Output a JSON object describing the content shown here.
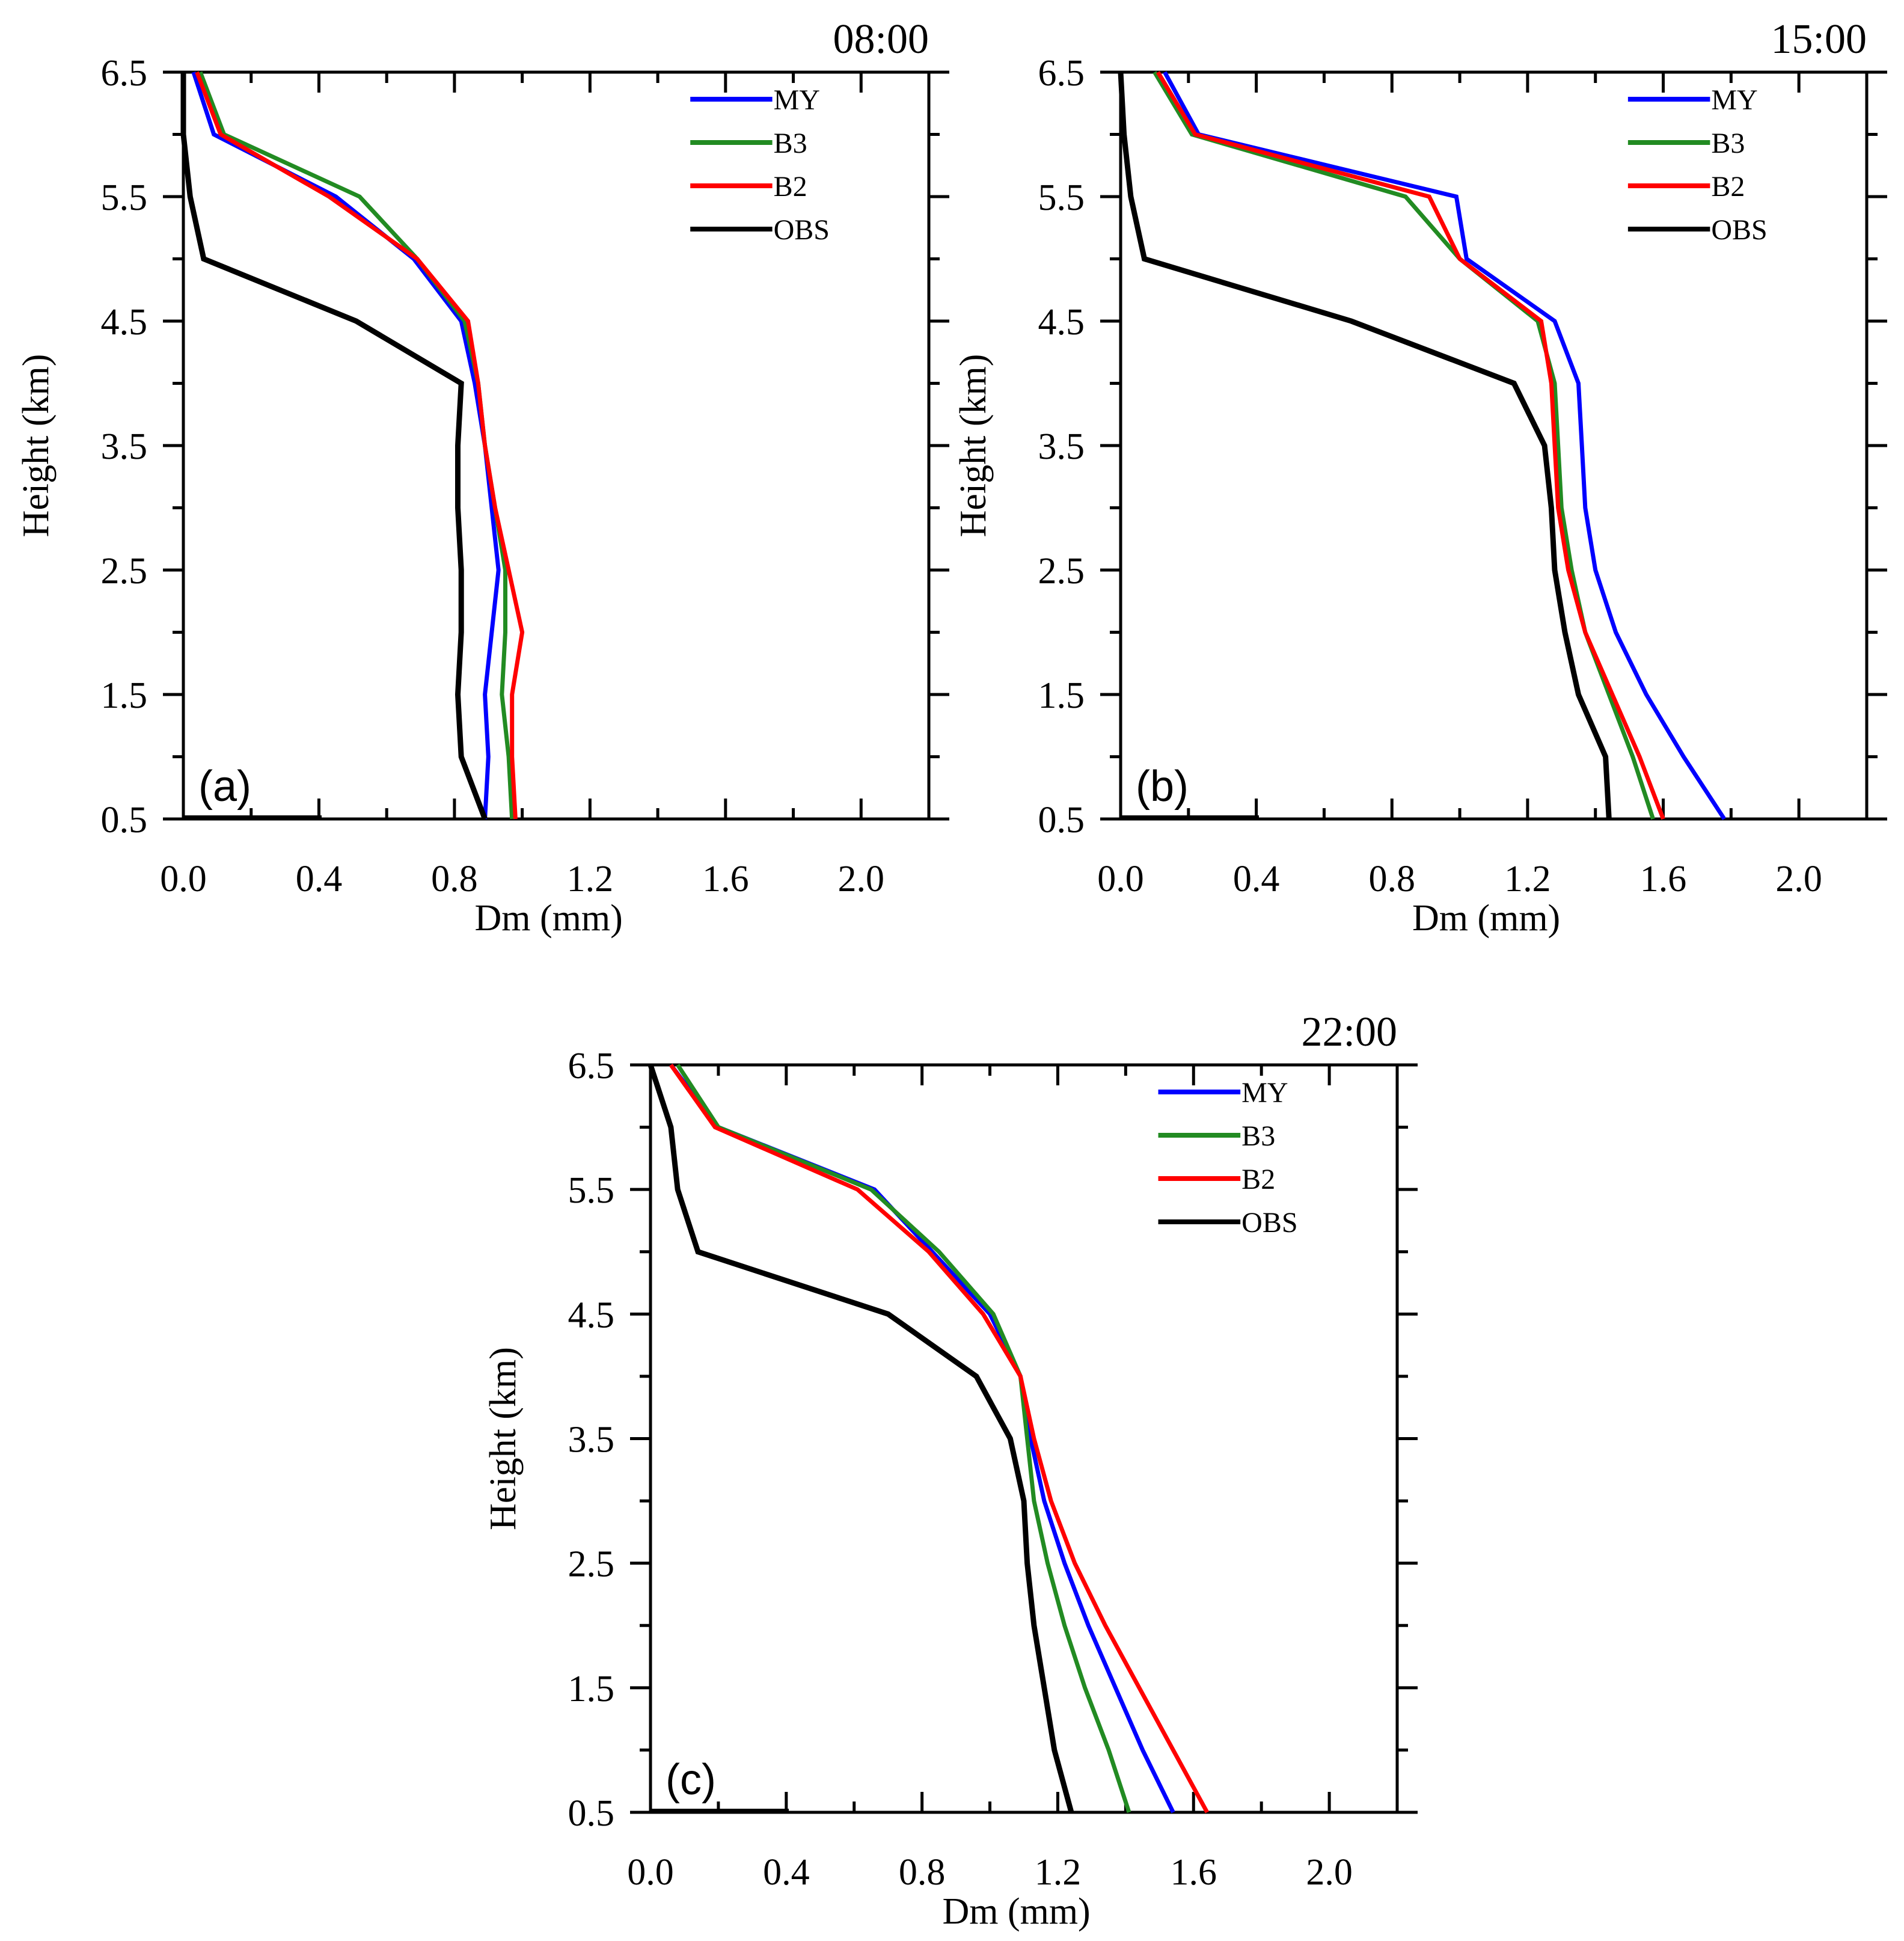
{
  "chart_data": [
    {
      "type": "line",
      "panel_label": "(a)",
      "time": "08:00",
      "xlabel": "Dm (mm)",
      "ylabel": "Height (km)",
      "xlim": [
        0.0,
        2.2
      ],
      "ylim": [
        0.5,
        6.5
      ],
      "xticks": [
        "0.0",
        "0.4",
        "0.8",
        "1.2",
        "1.6",
        "2.0"
      ],
      "yticks": [
        "0.5",
        "1.5",
        "2.5",
        "3.5",
        "4.5",
        "5.5",
        "6.5"
      ],
      "legend": "top-right",
      "y": [
        0.5,
        1.0,
        1.5,
        2.0,
        2.5,
        3.0,
        3.5,
        4.0,
        4.5,
        5.0,
        5.5,
        6.0,
        6.5
      ],
      "series": [
        {
          "name": "MY",
          "color": "#0000ff",
          "x": [
            0.89,
            0.9,
            0.89,
            0.91,
            0.93,
            0.91,
            0.89,
            0.86,
            0.82,
            0.68,
            0.45,
            0.09,
            0.03
          ]
        },
        {
          "name": "B3",
          "color": "#228b22",
          "x": [
            0.97,
            0.96,
            0.94,
            0.95,
            0.95,
            0.92,
            0.89,
            0.87,
            0.83,
            0.69,
            0.52,
            0.12,
            0.05
          ]
        },
        {
          "name": "B2",
          "color": "#ff0000",
          "x": [
            0.98,
            0.97,
            0.97,
            1.0,
            0.96,
            0.92,
            0.89,
            0.87,
            0.84,
            0.69,
            0.43,
            0.11,
            0.04
          ]
        },
        {
          "name": "OBS",
          "color": "#000000",
          "x": [
            0.89,
            0.82,
            0.81,
            0.82,
            0.82,
            0.81,
            0.81,
            0.82,
            0.51,
            0.06,
            0.02,
            0.0,
            0.0
          ]
        }
      ]
    },
    {
      "type": "line",
      "panel_label": "(b)",
      "time": "15:00",
      "xlabel": "Dm (mm)",
      "ylabel": "Height (km)",
      "xlim": [
        0.0,
        2.2
      ],
      "ylim": [
        0.5,
        6.5
      ],
      "xticks": [
        "0.0",
        "0.4",
        "0.8",
        "1.2",
        "1.6",
        "2.0"
      ],
      "yticks": [
        "0.5",
        "1.5",
        "2.5",
        "3.5",
        "4.5",
        "5.5",
        "6.5"
      ],
      "legend": "top-right",
      "y": [
        0.5,
        1.0,
        1.5,
        2.0,
        2.5,
        3.0,
        3.5,
        4.0,
        4.5,
        5.0,
        5.5,
        6.0,
        6.5
      ],
      "series": [
        {
          "name": "MY",
          "color": "#0000ff",
          "x": [
            1.78,
            1.66,
            1.55,
            1.46,
            1.4,
            1.37,
            1.36,
            1.35,
            1.28,
            1.02,
            0.99,
            0.23,
            0.13
          ]
        },
        {
          "name": "B3",
          "color": "#228b22",
          "x": [
            1.57,
            1.51,
            1.44,
            1.37,
            1.33,
            1.3,
            1.29,
            1.28,
            1.23,
            1.0,
            0.84,
            0.21,
            0.1
          ]
        },
        {
          "name": "B2",
          "color": "#ff0000",
          "x": [
            1.6,
            1.53,
            1.45,
            1.37,
            1.32,
            1.29,
            1.28,
            1.27,
            1.24,
            1.0,
            0.91,
            0.22,
            0.11
          ]
        },
        {
          "name": "OBS",
          "color": "#000000",
          "x": [
            1.44,
            1.43,
            1.35,
            1.31,
            1.28,
            1.27,
            1.25,
            1.16,
            0.68,
            0.07,
            0.03,
            0.01,
            0.0
          ]
        }
      ]
    },
    {
      "type": "line",
      "panel_label": "(c)",
      "time": "22:00",
      "xlabel": "Dm (mm)",
      "ylabel": "Height (km)",
      "xlim": [
        0.0,
        2.2
      ],
      "ylim": [
        0.5,
        6.5
      ],
      "xticks": [
        "0.0",
        "0.4",
        "0.8",
        "1.2",
        "1.6",
        "2.0"
      ],
      "yticks": [
        "0.5",
        "1.5",
        "2.5",
        "3.5",
        "4.5",
        "5.5",
        "6.5"
      ],
      "legend": "top-right",
      "y": [
        0.5,
        1.0,
        1.5,
        2.0,
        2.5,
        3.0,
        3.5,
        4.0,
        4.5,
        5.0,
        5.5,
        6.0,
        6.5
      ],
      "series": [
        {
          "name": "MY",
          "color": "#0000ff",
          "x": [
            1.54,
            1.45,
            1.37,
            1.29,
            1.22,
            1.16,
            1.12,
            1.09,
            1.0,
            0.83,
            0.66,
            0.2,
            0.06
          ]
        },
        {
          "name": "B3",
          "color": "#228b22",
          "x": [
            1.41,
            1.35,
            1.28,
            1.22,
            1.17,
            1.13,
            1.11,
            1.09,
            1.01,
            0.85,
            0.65,
            0.2,
            0.08
          ]
        },
        {
          "name": "B2",
          "color": "#ff0000",
          "x": [
            1.64,
            1.54,
            1.44,
            1.34,
            1.25,
            1.18,
            1.13,
            1.09,
            0.98,
            0.82,
            0.61,
            0.19,
            0.06
          ]
        },
        {
          "name": "OBS",
          "color": "#000000",
          "x": [
            1.24,
            1.19,
            1.16,
            1.13,
            1.11,
            1.1,
            1.06,
            0.96,
            0.7,
            0.14,
            0.08,
            0.06,
            0.0
          ]
        }
      ]
    }
  ]
}
